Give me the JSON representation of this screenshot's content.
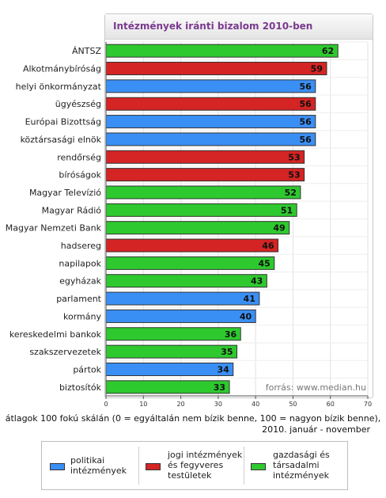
{
  "chart_data": {
    "type": "bar",
    "orientation": "horizontal",
    "title": "Intézmények iránti bizalom 2010-ben",
    "source": "forrás: www.median.hu",
    "xlim": [
      0,
      70
    ],
    "xticks": [
      0,
      10,
      20,
      30,
      40,
      50,
      60,
      70
    ],
    "grid": true,
    "categories": [
      "ÁNTSZ",
      "Alkotmánybíróság",
      "helyi önkormányzat",
      "ügyészség",
      "Európai Bizottság",
      "köztársasági elnök",
      "rendőrség",
      "bíróságok",
      "Magyar Televízió",
      "Magyar Rádió",
      "Magyar Nemzeti Bank",
      "hadsereg",
      "napilapok",
      "egyházak",
      "parlament",
      "kormány",
      "kereskedelmi bankok",
      "szakszervezetek",
      "pártok",
      "biztosítók"
    ],
    "values": [
      62,
      59,
      56,
      56,
      56,
      56,
      53,
      53,
      52,
      51,
      49,
      46,
      45,
      43,
      41,
      40,
      36,
      35,
      34,
      33
    ],
    "groups": [
      "gazdasagi",
      "jogi",
      "politikai",
      "jogi",
      "politikai",
      "politikai",
      "jogi",
      "jogi",
      "gazdasagi",
      "gazdasagi",
      "gazdasagi",
      "jogi",
      "gazdasagi",
      "gazdasagi",
      "politikai",
      "politikai",
      "gazdasagi",
      "gazdasagi",
      "politikai",
      "gazdasagi"
    ],
    "group_colors": {
      "politikai": "#3a8ff5",
      "jogi": "#d42424",
      "gazdasagi": "#2ec92e"
    },
    "legend": [
      {
        "key": "politikai",
        "label": "politikai\nintézmények"
      },
      {
        "key": "jogi",
        "label": "jogi intézmények\nés fegyveres\ntestületek"
      },
      {
        "key": "gazdasagi",
        "label": "gazdasági és\ntársadalmi\nintézmények"
      }
    ]
  },
  "note": {
    "line1": "átlagok 100 fokú skálán (0 = egyáltalán nem bízik benne, 100 = nagyon bízik benne),",
    "line2": "2010. január - november"
  }
}
